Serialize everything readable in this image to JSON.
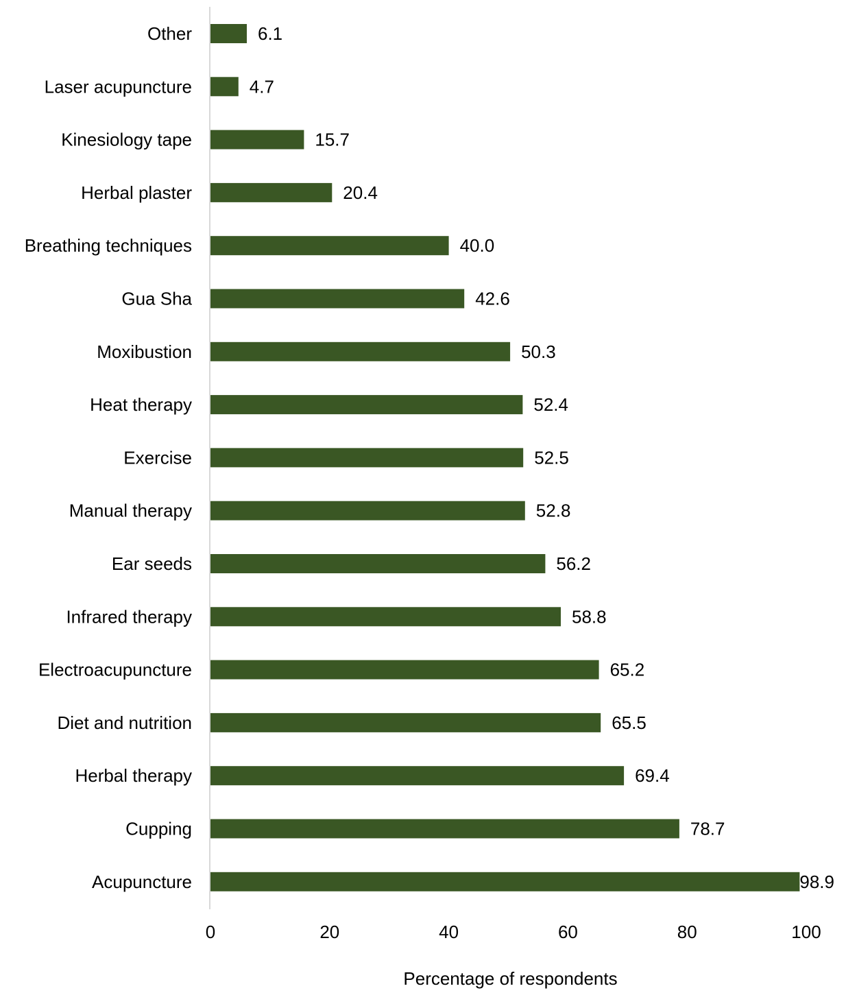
{
  "chart_data": {
    "type": "bar",
    "orientation": "horizontal",
    "categories": [
      "Other",
      "Laser acupuncture",
      "Kinesiology tape",
      "Herbal plaster",
      "Breathing techniques",
      "Gua Sha",
      "Moxibustion",
      "Heat therapy",
      "Exercise",
      "Manual therapy",
      "Ear seeds",
      "Infrared therapy",
      "Electroacupuncture",
      "Diet and nutrition",
      "Herbal therapy",
      "Cupping",
      "Acupuncture"
    ],
    "values": [
      6.1,
      4.7,
      15.7,
      20.4,
      40.0,
      42.6,
      50.3,
      52.4,
      52.5,
      52.8,
      56.2,
      58.8,
      65.2,
      65.5,
      69.4,
      78.7,
      98.9
    ],
    "value_labels": [
      "6.1",
      "4.7",
      "15.7",
      "20.4",
      "40.0",
      "42.6",
      "50.3",
      "52.4",
      "52.5",
      "52.8",
      "56.2",
      "58.8",
      "65.2",
      "65.5",
      "69.4",
      "78.7",
      "98.9"
    ],
    "title": "",
    "xlabel": "Percentage of respondents",
    "ylabel": "",
    "xlim": [
      0,
      100
    ],
    "xticks": [
      0,
      20,
      40,
      60,
      80,
      100
    ],
    "xtick_labels": [
      "0",
      "20",
      "40",
      "60",
      "80",
      "100"
    ],
    "grid": false,
    "legend": "none",
    "colors": {
      "bar": "#3a5724",
      "axis_line": "#d9d9d9",
      "text": "#000000"
    }
  }
}
